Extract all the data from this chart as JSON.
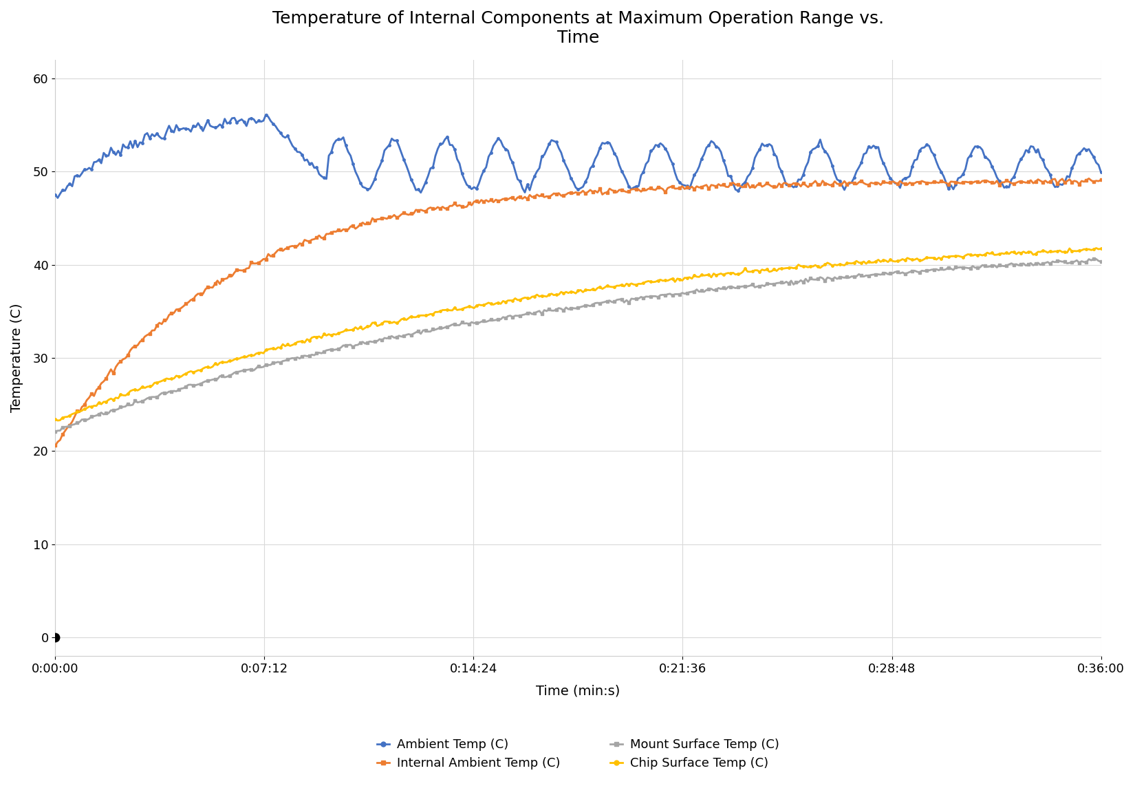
{
  "title": "Temperature of Internal Components at Maximum Operation Range vs.\nTime",
  "xlabel": "Time (min:s)",
  "ylabel": "Temperature (C)",
  "ylim": [
    -2,
    62
  ],
  "xlim": [
    0,
    2160
  ],
  "yticks": [
    0,
    10,
    20,
    30,
    40,
    50,
    60
  ],
  "xticks": [
    0,
    432,
    864,
    1296,
    1728,
    2160
  ],
  "xtick_labels": [
    "0:00:00",
    "0:07:12",
    "0:14:24",
    "0:21:36",
    "0:28:48",
    "0:36:00"
  ],
  "colors": {
    "ambient": "#4472C4",
    "internal_ambient": "#ED7D31",
    "mount_surface": "#A5A5A5",
    "chip_surface": "#FFC000"
  },
  "legend_labels": [
    "Ambient Temp (C)",
    "Internal Ambient Temp (C)",
    "Mount Surface Temp (C)",
    "Chip Surface Temp (C)"
  ],
  "dot_color": "#000000",
  "background_color": "#FFFFFF",
  "grid_color": "#D9D9D9",
  "title_fontsize": 18,
  "axis_label_fontsize": 14,
  "tick_fontsize": 13,
  "legend_fontsize": 13
}
